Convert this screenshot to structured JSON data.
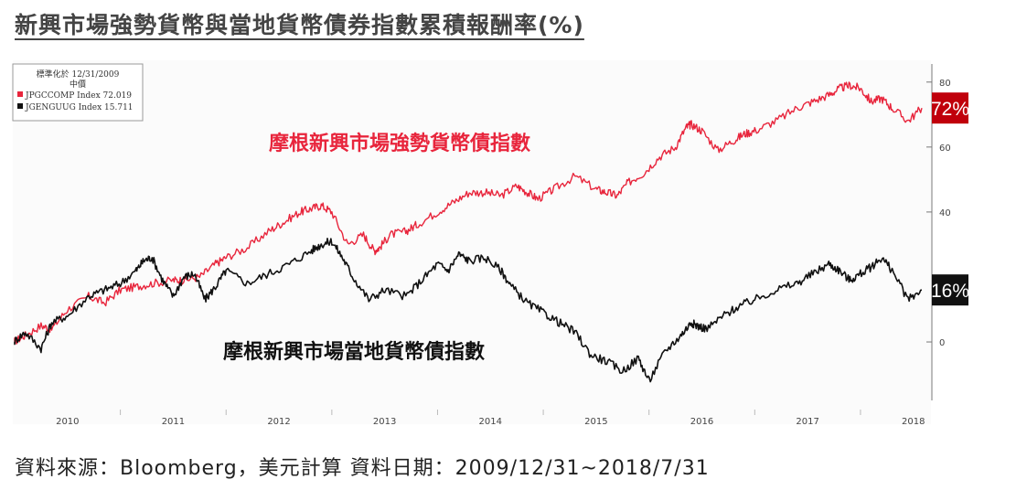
{
  "page": {
    "title": "新興市場強勢貨幣與當地貨幣債券指數累積報酬率(%)",
    "source_note": "資料來源：Bloomberg，美元計算  資料日期：2009/12/31~2018/7/31"
  },
  "chart_data": {
    "type": "line",
    "title": "新興市場強勢貨幣與當地貨幣債券指數累積報酬率(%)",
    "xlabel": "",
    "ylabel": "",
    "x_ticks": [
      "2010",
      "2011",
      "2012",
      "2013",
      "2014",
      "2015",
      "2016",
      "2017",
      "2018"
    ],
    "y_ticks": [
      "80",
      "60",
      "40",
      "0"
    ],
    "y_tick_values": [
      80,
      60,
      40,
      0
    ],
    "xlim": [
      "2009-12-31",
      "2018-07-31"
    ],
    "ylim": [
      -18,
      85
    ],
    "grid": false,
    "legend": {
      "placement": "top-left",
      "header": "標準化於 12/31/2009",
      "subheader": "中價",
      "entries": [
        {
          "label": "JPGCCOMP Index 72.019",
          "color": "#e8253c"
        },
        {
          "label": "JGENGUUG Index 15.711",
          "color": "#111111"
        }
      ]
    },
    "annotations": [
      {
        "text": "摩根新興市場強勢貨幣債指數",
        "color": "#e8253c"
      },
      {
        "text": "摩根新興市場當地貨幣債指數",
        "color": "#111111"
      }
    ],
    "end_labels": [
      {
        "text": "72%",
        "value": 72,
        "bg": "#c0000b",
        "fg": "#ffffff"
      },
      {
        "text": "16%",
        "value": 16,
        "bg": "#111111",
        "fg": "#ffffff"
      }
    ],
    "series": [
      {
        "name": "JPGCCOMP Index",
        "color": "#e8253c",
        "x": [
          2009.99,
          2010.1,
          2010.25,
          2010.35,
          2010.5,
          2010.7,
          2010.85,
          2011.0,
          2011.15,
          2011.3,
          2011.5,
          2011.6,
          2011.75,
          2011.9,
          2012.0,
          2012.2,
          2012.4,
          2012.55,
          2012.7,
          2012.8,
          2012.9,
          2013.0,
          2013.15,
          2013.3,
          2013.4,
          2013.45,
          2013.55,
          2013.7,
          2013.8,
          2014.0,
          2014.15,
          2014.3,
          2014.45,
          2014.6,
          2014.75,
          2014.85,
          2014.95,
          2015.1,
          2015.3,
          2015.5,
          2015.6,
          2015.7,
          2015.8,
          2015.95,
          2016.1,
          2016.25,
          2016.35,
          2016.4,
          2016.5,
          2016.65,
          2016.8,
          2016.9,
          2017.0,
          2017.2,
          2017.4,
          2017.55,
          2017.7,
          2017.8,
          2017.9,
          2018.0,
          2018.1,
          2018.2,
          2018.3,
          2018.45,
          2018.58
        ],
        "values": [
          0,
          2,
          5,
          4,
          10,
          14,
          12,
          16,
          17,
          18,
          19,
          19,
          20,
          24,
          26,
          29,
          34,
          37,
          40,
          41,
          42,
          40,
          30,
          33,
          28,
          29,
          33,
          34,
          36,
          40,
          43,
          46,
          46,
          45,
          48,
          46,
          44,
          47,
          51,
          47,
          46,
          45,
          49,
          52,
          57,
          60,
          66,
          67,
          65,
          59,
          62,
          64,
          65,
          68,
          72,
          74,
          76,
          78,
          79,
          78,
          74,
          75,
          72,
          68,
          72
        ]
      },
      {
        "name": "JGENGUUG Index",
        "color": "#111111",
        "x": [
          2009.99,
          2010.1,
          2010.25,
          2010.35,
          2010.5,
          2010.7,
          2010.85,
          2011.0,
          2011.15,
          2011.22,
          2011.3,
          2011.4,
          2011.5,
          2011.6,
          2011.7,
          2011.8,
          2011.9,
          2012.0,
          2012.2,
          2012.4,
          2012.6,
          2012.8,
          2012.9,
          2013.0,
          2013.1,
          2013.2,
          2013.35,
          2013.5,
          2013.7,
          2013.85,
          2014.0,
          2014.1,
          2014.2,
          2014.3,
          2014.45,
          2014.6,
          2014.7,
          2014.85,
          2015.0,
          2015.15,
          2015.3,
          2015.45,
          2015.6,
          2015.75,
          2015.9,
          2016.0,
          2016.15,
          2016.3,
          2016.4,
          2016.45,
          2016.55,
          2016.7,
          2016.85,
          2017.0,
          2017.2,
          2017.4,
          2017.55,
          2017.7,
          2017.8,
          2017.9,
          2018.0,
          2018.1,
          2018.2,
          2018.3,
          2018.45,
          2018.58
        ],
        "values": [
          0,
          3,
          -2,
          6,
          8,
          14,
          16,
          18,
          22,
          25,
          26,
          19,
          14,
          20,
          21,
          13,
          17,
          22,
          18,
          21,
          24,
          28,
          30,
          31,
          26,
          20,
          13,
          16,
          14,
          19,
          24,
          22,
          27,
          25,
          26,
          22,
          17,
          12,
          9,
          6,
          3,
          -4,
          -6,
          -9,
          -5,
          -12,
          -3,
          2,
          6,
          5,
          4,
          8,
          11,
          13,
          16,
          18,
          21,
          24,
          22,
          19,
          21,
          23,
          26,
          22,
          13,
          16
        ]
      }
    ]
  }
}
